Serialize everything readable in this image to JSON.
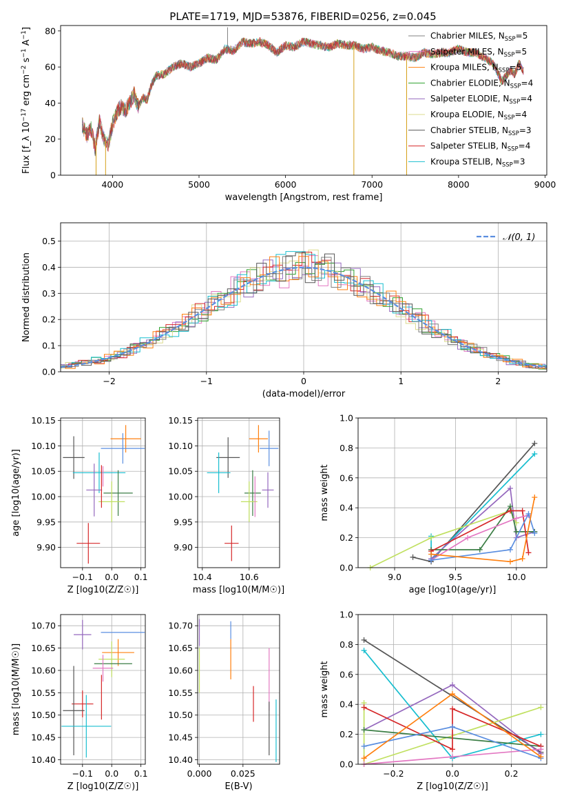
{
  "figure_title": "PLATE=1719, MJD=53876, FIBERID=0256, z=0.045",
  "chart_data": [
    {
      "id": "spectrum",
      "type": "line",
      "xlabel": "wavelength [Angstrom, rest frame]",
      "ylabel": "Flux [f_λ 10^-17 erg cm^-2 s^-1 A^-1]",
      "xlim": [
        3400,
        9020
      ],
      "ylim": [
        0,
        83
      ],
      "xticks": [
        4000,
        5000,
        6000,
        7000,
        8000,
        9000
      ],
      "yticks": [
        0,
        20,
        40,
        60,
        80
      ],
      "grid": false,
      "legend_position": "right",
      "continuum": [
        [
          3650,
          28
        ],
        [
          3700,
          22
        ],
        [
          3750,
          26
        ],
        [
          3800,
          15
        ],
        [
          3850,
          30
        ],
        [
          3900,
          20
        ],
        [
          3950,
          17
        ],
        [
          4000,
          28
        ],
        [
          4050,
          35
        ],
        [
          4100,
          38
        ],
        [
          4150,
          36
        ],
        [
          4200,
          40
        ],
        [
          4250,
          45
        ],
        [
          4300,
          38
        ],
        [
          4350,
          43
        ],
        [
          4400,
          42
        ],
        [
          4450,
          50
        ],
        [
          4500,
          55
        ],
        [
          4600,
          56
        ],
        [
          4700,
          60
        ],
        [
          4800,
          62
        ],
        [
          4900,
          60
        ],
        [
          5000,
          62
        ],
        [
          5100,
          65
        ],
        [
          5200,
          64
        ],
        [
          5300,
          70
        ],
        [
          5400,
          69
        ],
        [
          5500,
          74
        ],
        [
          5600,
          73
        ],
        [
          5700,
          74
        ],
        [
          5800,
          72
        ],
        [
          5900,
          68
        ],
        [
          6000,
          72
        ],
        [
          6100,
          71
        ],
        [
          6200,
          74
        ],
        [
          6300,
          73
        ],
        [
          6400,
          72
        ],
        [
          6500,
          71
        ],
        [
          6600,
          73
        ],
        [
          6700,
          72
        ],
        [
          6800,
          72
        ],
        [
          6900,
          70
        ],
        [
          7000,
          71
        ],
        [
          7100,
          69
        ],
        [
          7200,
          68
        ],
        [
          7300,
          66
        ],
        [
          7400,
          66
        ],
        [
          7500,
          65
        ],
        [
          7600,
          68
        ],
        [
          7700,
          67
        ],
        [
          7800,
          68
        ],
        [
          7900,
          68
        ],
        [
          8000,
          70
        ],
        [
          8100,
          68
        ],
        [
          8200,
          68
        ],
        [
          8300,
          65
        ],
        [
          8400,
          62
        ],
        [
          8500,
          52
        ],
        [
          8550,
          55
        ],
        [
          8600,
          58
        ],
        [
          8650,
          56
        ],
        [
          8700,
          62
        ],
        [
          8750,
          58
        ]
      ],
      "spikes": [
        {
          "x": 5330,
          "y": 82
        },
        {
          "x": 3810,
          "y": 0
        },
        {
          "x": 3920,
          "y": 0
        },
        {
          "x": 6790,
          "y": 0
        },
        {
          "x": 7400,
          "y": 0
        }
      ],
      "series": [
        {
          "name": "Chabrier MILES, N_SSP=5",
          "color": "#808080"
        },
        {
          "name": "Salpeter MILES, N_SSP=5",
          "color": "#e377c2"
        },
        {
          "name": "Kroupa MILES, N_SSP=5",
          "color": "#ff7f0e"
        },
        {
          "name": "Chabrier ELODIE, N_SSP=4",
          "color": "#2ca02c"
        },
        {
          "name": "Salpeter ELODIE, N_SSP=4",
          "color": "#9467bd"
        },
        {
          "name": "Kroupa ELODIE, N_SSP=4",
          "color": "#dbdb8d"
        },
        {
          "name": "Chabrier STELIB, N_SSP=3",
          "color": "#555555"
        },
        {
          "name": "Salpeter STELIB, N_SSP=4",
          "color": "#d62728"
        },
        {
          "name": "Kroupa STELIB, N_SSP=3",
          "color": "#17becf"
        }
      ]
    },
    {
      "id": "residuals",
      "type": "line",
      "xlabel": "(data-model)/error",
      "ylabel": "Normed distribution",
      "xlim": [
        -2.5,
        2.5
      ],
      "ylim": [
        0,
        0.57
      ],
      "xticks": [
        -2,
        -1,
        0,
        1,
        2
      ],
      "yticks": [
        0.0,
        0.1,
        0.2,
        0.3,
        0.4,
        0.5
      ],
      "grid": true,
      "legend_position": "top-right",
      "legend": "N(0,1)",
      "normal_curve_color": "#5a8ee0",
      "hist_color_order": [
        "#e377c2",
        "#9467bd",
        "#2ca02c",
        "#dbdb8d",
        "#d62728",
        "#17becf",
        "#ff7f0e",
        "#808080",
        "#555555"
      ]
    },
    {
      "id": "age-vs-Z",
      "type": "scatter",
      "xlabel": "Z [log10(Z/Z☉)]",
      "ylabel": "age [log10(age/yr)]",
      "xlim": [
        -0.175,
        0.115
      ],
      "ylim": [
        9.86,
        10.155
      ],
      "xticks": [
        -0.1,
        0.0,
        0.1
      ],
      "yticks": [
        9.9,
        9.95,
        10.0,
        10.05,
        10.1,
        10.15
      ],
      "grid": true,
      "points": [
        {
          "x": 0.048,
          "y": 10.114,
          "xerr": 0.052,
          "yerr": 0.027,
          "color": "#ff7f0e"
        },
        {
          "x": 0.038,
          "y": 10.095,
          "xerr": 0.075,
          "yerr": 0.03,
          "color": "#5a8ee0"
        },
        {
          "x": -0.13,
          "y": 10.077,
          "xerr": 0.037,
          "yerr": 0.042,
          "color": "#555555"
        },
        {
          "x": -0.043,
          "y": 10.047,
          "xerr": 0.09,
          "yerr": 0.04,
          "color": "#17becf"
        },
        {
          "x": -0.06,
          "y": 10.013,
          "xerr": 0.027,
          "yerr": 0.052,
          "color": "#9467bd"
        },
        {
          "x": 0.022,
          "y": 10.007,
          "xerr": 0.05,
          "yerr": 0.045,
          "color": "#3a7d44"
        },
        {
          "x": 0.0,
          "y": 9.99,
          "xerr": 0.045,
          "yerr": 0.04,
          "color": "#c0e060"
        },
        {
          "x": -0.08,
          "y": 9.908,
          "xerr": 0.04,
          "yerr": 0.04,
          "color": "#d62728"
        },
        {
          "x": -0.035,
          "y": 10.02,
          "xerr": 0.0,
          "yerr": 0.042,
          "color": "#d62728"
        },
        {
          "x": -0.03,
          "y": 10.04,
          "xerr": 0.0,
          "yerr": 0.02,
          "color": "#e377c2"
        }
      ]
    },
    {
      "id": "age-vs-mass",
      "type": "scatter",
      "xlabel": "mass [log10(M/M☉)]",
      "ylabel": "",
      "xlim": [
        10.38,
        10.73
      ],
      "ylim": [
        9.86,
        10.155
      ],
      "xticks": [
        10.4,
        10.6
      ],
      "yticks": [
        9.9,
        9.95,
        10.0,
        10.05,
        10.1,
        10.15
      ],
      "grid": true,
      "points": [
        {
          "x": 10.64,
          "y": 10.114,
          "xerr": 0.04,
          "yerr": 0.027,
          "color": "#ff7f0e"
        },
        {
          "x": 10.685,
          "y": 10.095,
          "xerr": 0.04,
          "yerr": 0.035,
          "color": "#5a8ee0"
        },
        {
          "x": 10.51,
          "y": 10.077,
          "xerr": 0.05,
          "yerr": 0.04,
          "color": "#555555"
        },
        {
          "x": 10.47,
          "y": 10.047,
          "xerr": 0.05,
          "yerr": 0.04,
          "color": "#17becf"
        },
        {
          "x": 10.68,
          "y": 10.013,
          "xerr": 0.025,
          "yerr": 0.035,
          "color": "#9467bd"
        },
        {
          "x": 10.615,
          "y": 10.007,
          "xerr": 0.035,
          "yerr": 0.045,
          "color": "#3a7d44"
        },
        {
          "x": 10.6,
          "y": 9.99,
          "xerr": 0.035,
          "yerr": 0.04,
          "color": "#c0e060"
        },
        {
          "x": 10.525,
          "y": 9.908,
          "xerr": 0.03,
          "yerr": 0.035,
          "color": "#d62728"
        },
        {
          "x": 10.625,
          "y": 10.0,
          "xerr": 0.0,
          "yerr": 0.04,
          "color": "#e377c2"
        }
      ]
    },
    {
      "id": "massweight-vs-age",
      "type": "line",
      "xlabel": "age [log10(age/yr)]",
      "ylabel": "mass weight",
      "xlim": [
        8.7,
        10.25
      ],
      "ylim": [
        0,
        1.0
      ],
      "xticks": [
        9.0,
        9.5,
        10.0
      ],
      "yticks": [
        0.0,
        0.2,
        0.4,
        0.6,
        0.8,
        1.0
      ],
      "grid": true,
      "series": [
        {
          "color": "#555555",
          "x": [
            9.15,
            9.3,
            10.15
          ],
          "y": [
            0.07,
            0.04,
            0.83
          ]
        },
        {
          "color": "#17becf",
          "x": [
            9.3,
            9.3,
            10.15
          ],
          "y": [
            0.21,
            0.05,
            0.76
          ]
        },
        {
          "color": "#9467bd",
          "x": [
            9.3,
            9.95,
            10.0,
            10.15
          ],
          "y": [
            0.06,
            0.53,
            0.2,
            0.24
          ]
        },
        {
          "color": "#c0e060",
          "x": [
            8.8,
            9.3,
            9.95,
            10.0
          ],
          "y": [
            0.0,
            0.2,
            0.38,
            0.3
          ]
        },
        {
          "color": "#3a7d44",
          "x": [
            9.3,
            9.7,
            9.95,
            10.0,
            10.15
          ],
          "y": [
            0.12,
            0.12,
            0.41,
            0.24,
            0.24
          ]
        },
        {
          "color": "#d62728",
          "x": [
            9.3,
            9.95,
            10.05,
            10.1
          ],
          "y": [
            0.11,
            0.38,
            0.38,
            0.1
          ]
        },
        {
          "color": "#e377c2",
          "x": [
            9.3,
            9.6,
            10.0,
            10.1
          ],
          "y": [
            0.05,
            0.2,
            0.33,
            0.35
          ]
        },
        {
          "color": "#5a8ee0",
          "x": [
            9.3,
            9.95,
            10.1,
            10.15
          ],
          "y": [
            0.05,
            0.12,
            0.36,
            0.23
          ]
        },
        {
          "color": "#ff7f0e",
          "x": [
            9.3,
            9.95,
            10.05,
            10.15
          ],
          "y": [
            0.09,
            0.04,
            0.06,
            0.47
          ]
        }
      ]
    },
    {
      "id": "mass-vs-Z",
      "type": "scatter",
      "xlabel": "Z [log10(Z/Z☉)]",
      "ylabel": "mass [log10(M/M☉)]",
      "xlim": [
        -0.175,
        0.115
      ],
      "ylim": [
        10.39,
        10.725
      ],
      "xticks": [
        -0.1,
        0.0,
        0.1
      ],
      "yticks": [
        10.4,
        10.45,
        10.5,
        10.55,
        10.6,
        10.65,
        10.7
      ],
      "grid": true,
      "points": [
        {
          "x": 0.038,
          "y": 10.685,
          "xerr": 0.075,
          "yerr": 0.0,
          "color": "#5a8ee0"
        },
        {
          "x": -0.1,
          "y": 10.68,
          "xerr": 0.03,
          "yerr": 0.033,
          "color": "#9467bd"
        },
        {
          "x": 0.022,
          "y": 10.64,
          "xerr": 0.055,
          "yerr": 0.03,
          "color": "#ff7f0e"
        },
        {
          "x": 0.0,
          "y": 10.625,
          "xerr": 0.045,
          "yerr": 0.04,
          "color": "#c0e060"
        },
        {
          "x": 0.005,
          "y": 10.615,
          "xerr": 0.065,
          "yerr": 0.0,
          "color": "#3a7d44"
        },
        {
          "x": -0.03,
          "y": 10.605,
          "xerr": 0.035,
          "yerr": 0.03,
          "color": "#e377c2"
        },
        {
          "x": -0.1,
          "y": 10.525,
          "xerr": 0.037,
          "yerr": 0.03,
          "color": "#d62728"
        },
        {
          "x": -0.035,
          "y": 10.54,
          "xerr": 0.0,
          "yerr": 0.05,
          "color": "#d62728"
        },
        {
          "x": -0.13,
          "y": 10.51,
          "xerr": 0.037,
          "yerr": 0.1,
          "color": "#555555"
        },
        {
          "x": -0.087,
          "y": 10.475,
          "xerr": 0.085,
          "yerr": 0.07,
          "color": "#17becf"
        }
      ]
    },
    {
      "id": "mass-vs-EBV",
      "type": "scatter",
      "xlabel": "E(B-V)",
      "ylabel": "",
      "xlim": [
        -0.001,
        0.046
      ],
      "ylim": [
        10.39,
        10.725
      ],
      "xticks": [
        0.0,
        0.025
      ],
      "xtick_labels": [
        "0.000",
        "0.025"
      ],
      "yticks": [
        10.4,
        10.45,
        10.5,
        10.55,
        10.6,
        10.65,
        10.7
      ],
      "grid": true,
      "points": [
        {
          "x": 0.0,
          "y": 10.685,
          "xerr": 0,
          "yerr": 0.03,
          "color": "#9467bd"
        },
        {
          "x": 0.0,
          "y": 10.6,
          "xerr": 0,
          "yerr": 0.05,
          "color": "#c0e060"
        },
        {
          "x": 0.018,
          "y": 10.69,
          "xerr": 0,
          "yerr": 0.02,
          "color": "#5a8ee0"
        },
        {
          "x": 0.018,
          "y": 10.625,
          "xerr": 0,
          "yerr": 0.045,
          "color": "#ff7f0e"
        },
        {
          "x": 0.031,
          "y": 10.525,
          "xerr": 0,
          "yerr": 0.04,
          "color": "#d62728"
        },
        {
          "x": 0.04,
          "y": 10.58,
          "xerr": 0,
          "yerr": 0.07,
          "color": "#e377c2"
        },
        {
          "x": 0.04,
          "y": 10.47,
          "xerr": 0,
          "yerr": 0.06,
          "color": "#555555"
        },
        {
          "x": 0.044,
          "y": 10.465,
          "xerr": 0,
          "yerr": 0.07,
          "color": "#17becf"
        }
      ]
    },
    {
      "id": "massweight-vs-Z",
      "type": "line",
      "xlabel": "Z [log10(Z/Z☉)]",
      "ylabel": "mass weight",
      "xlim": [
        -0.32,
        0.32
      ],
      "ylim": [
        0,
        1.0
      ],
      "xticks": [
        -0.2,
        0.0,
        0.2
      ],
      "yticks": [
        0.0,
        0.2,
        0.4,
        0.6,
        0.8,
        1.0
      ],
      "grid": true,
      "series": [
        {
          "color": "#555555",
          "x": [
            -0.3,
            0.3
          ],
          "y": [
            0.83,
            0.08
          ]
        },
        {
          "color": "#17becf",
          "x": [
            -0.3,
            0.0,
            0.3
          ],
          "y": [
            0.76,
            0.04,
            0.2
          ]
        },
        {
          "color": "#9467bd",
          "x": [
            -0.3,
            0.0,
            0.3
          ],
          "y": [
            0.23,
            0.53,
            0.07
          ]
        },
        {
          "color": "#c0e060",
          "x": [
            -0.3,
            -0.3,
            0.3
          ],
          "y": [
            0.41,
            0.0,
            0.38
          ]
        },
        {
          "color": "#3a7d44",
          "x": [
            -0.3,
            0.3
          ],
          "y": [
            0.23,
            0.12
          ]
        },
        {
          "color": "#d62728",
          "x": [
            -0.3,
            0.0,
            0.0,
            0.3
          ],
          "y": [
            0.38,
            0.1,
            0.37,
            0.12
          ]
        },
        {
          "color": "#e377c2",
          "x": [
            -0.3,
            0.0,
            0.3
          ],
          "y": [
            0.0,
            0.05,
            0.1
          ]
        },
        {
          "color": "#5a8ee0",
          "x": [
            -0.3,
            0.0,
            0.3
          ],
          "y": [
            0.12,
            0.25,
            0.04
          ]
        },
        {
          "color": "#ff7f0e",
          "x": [
            -0.3,
            0.0,
            0.3
          ],
          "y": [
            0.04,
            0.47,
            0.05
          ]
        }
      ]
    }
  ]
}
